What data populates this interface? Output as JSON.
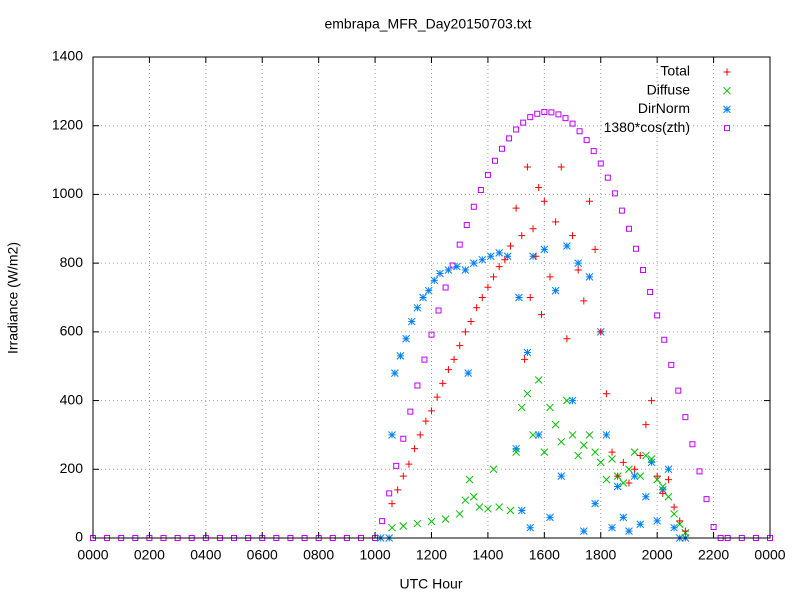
{
  "chart_data": {
    "type": "scatter",
    "title": "embrapa_MFR_Day20150703.txt",
    "xlabel": "UTC Hour",
    "ylabel": "Irradiance (W/m2)",
    "xlim": [
      0,
      24
    ],
    "ylim": [
      0,
      1400
    ],
    "xticks": [
      {
        "value": 0,
        "label": "0000"
      },
      {
        "value": 2,
        "label": "0200"
      },
      {
        "value": 4,
        "label": "0400"
      },
      {
        "value": 6,
        "label": "0600"
      },
      {
        "value": 8,
        "label": "0800"
      },
      {
        "value": 10,
        "label": "1000"
      },
      {
        "value": 12,
        "label": "1200"
      },
      {
        "value": 14,
        "label": "1400"
      },
      {
        "value": 16,
        "label": "1600"
      },
      {
        "value": 18,
        "label": "1800"
      },
      {
        "value": 20,
        "label": "2000"
      },
      {
        "value": 22,
        "label": "2200"
      },
      {
        "value": 24,
        "label": "0000"
      }
    ],
    "yticks": [
      0,
      200,
      400,
      600,
      800,
      1000,
      1200,
      1400
    ],
    "grid": true,
    "legend": "top-right",
    "series": [
      {
        "name": "1380*cos(zth)",
        "color": "#c000ff",
        "marker": "square",
        "x": [
          0,
          0.5,
          1,
          1.5,
          2,
          2.5,
          3,
          3.5,
          4,
          4.5,
          5,
          5.5,
          6,
          6.5,
          7,
          7.5,
          8,
          8.5,
          9,
          9.5,
          10,
          10.25,
          10.5,
          10.75,
          11,
          11.25,
          11.5,
          11.75,
          12,
          12.25,
          12.5,
          12.75,
          13,
          13.25,
          13.5,
          13.75,
          14,
          14.25,
          14.5,
          14.75,
          15,
          15.25,
          15.5,
          15.75,
          16,
          16.25,
          16.5,
          16.75,
          17,
          17.25,
          17.5,
          17.75,
          18,
          18.25,
          18.5,
          18.75,
          19,
          19.25,
          19.5,
          19.75,
          20,
          20.25,
          20.5,
          20.75,
          21,
          21.25,
          21.5,
          21.75,
          22,
          22.25,
          22.5,
          23,
          23.5,
          24
        ],
        "values": [
          0,
          0,
          0,
          0,
          0,
          0,
          0,
          0,
          0,
          0,
          0,
          0,
          0,
          0,
          0,
          0,
          0,
          0,
          0,
          0,
          0,
          49,
          130,
          210,
          289,
          368,
          444,
          519,
          592,
          662,
          729,
          793,
          854,
          911,
          964,
          1013,
          1057,
          1098,
          1133,
          1163,
          1189,
          1209,
          1225,
          1235,
          1240,
          1239,
          1233,
          1222,
          1206,
          1184,
          1158,
          1126,
          1090,
          1049,
          1003,
          953,
          900,
          842,
          780,
          716,
          648,
          577,
          504,
          429,
          352,
          273,
          194,
          113,
          32,
          0,
          0,
          0,
          0,
          0
        ]
      },
      {
        "name": "DirNorm",
        "color": "#0080ff",
        "marker": "star",
        "x": [
          10.2,
          10.5,
          10.6,
          10.7,
          10.9,
          11.1,
          11.3,
          11.5,
          11.7,
          11.9,
          12.1,
          12.3,
          12.6,
          12.9,
          13.2,
          13.3,
          13.5,
          13.8,
          14.1,
          14.4,
          14.7,
          15.0,
          15.1,
          15.2,
          15.4,
          15.5,
          15.6,
          15.8,
          16.0,
          16.2,
          16.4,
          16.6,
          16.8,
          17.0,
          17.2,
          17.4,
          17.6,
          17.8,
          18.0,
          18.2,
          18.4,
          18.6,
          18.8,
          19.0,
          19.2,
          19.4,
          19.6,
          19.8,
          20.0,
          20.2,
          20.4,
          20.6,
          20.8,
          21.0
        ],
        "values": [
          0,
          0,
          300,
          480,
          530,
          580,
          630,
          670,
          700,
          720,
          750,
          770,
          780,
          790,
          780,
          480,
          800,
          810,
          820,
          830,
          820,
          260,
          700,
          80,
          540,
          30,
          820,
          300,
          840,
          60,
          720,
          180,
          850,
          400,
          800,
          20,
          760,
          100,
          600,
          300,
          30,
          150,
          60,
          20,
          180,
          40,
          120,
          220,
          50,
          140,
          200,
          30,
          0,
          0
        ]
      },
      {
        "name": "Diffuse",
        "color": "#00c000",
        "marker": "cross",
        "x": [
          10.6,
          11.0,
          11.5,
          12.0,
          12.5,
          13.0,
          13.2,
          13.35,
          13.5,
          13.7,
          14.0,
          14.2,
          14.4,
          14.8,
          15.0,
          15.2,
          15.4,
          15.6,
          15.8,
          16.0,
          16.2,
          16.4,
          16.6,
          16.8,
          17.0,
          17.2,
          17.4,
          17.6,
          17.8,
          18.0,
          18.2,
          18.4,
          18.6,
          18.8,
          19.0,
          19.2,
          19.4,
          19.6,
          19.8,
          20.0,
          20.2,
          20.4,
          20.6,
          20.8,
          21.0
        ],
        "values": [
          30,
          35,
          42,
          48,
          55,
          70,
          110,
          170,
          120,
          90,
          85,
          200,
          90,
          80,
          250,
          380,
          420,
          300,
          460,
          250,
          380,
          330,
          280,
          400,
          300,
          240,
          270,
          300,
          250,
          220,
          170,
          230,
          180,
          160,
          200,
          250,
          180,
          240,
          230,
          170,
          150,
          120,
          70,
          40,
          15
        ]
      },
      {
        "name": "Total",
        "color": "#ff0000",
        "marker": "plus",
        "x": [
          10.6,
          10.8,
          11.0,
          11.2,
          11.4,
          11.6,
          11.8,
          12.0,
          12.2,
          12.4,
          12.6,
          12.8,
          13.0,
          13.2,
          13.4,
          13.6,
          13.8,
          14.0,
          14.2,
          14.4,
          14.6,
          14.8,
          15.0,
          15.2,
          15.3,
          15.4,
          15.5,
          15.6,
          15.7,
          15.8,
          15.9,
          16.0,
          16.2,
          16.4,
          16.6,
          16.8,
          17.0,
          17.2,
          17.4,
          17.6,
          17.8,
          18.0,
          18.2,
          18.4,
          18.6,
          18.8,
          19.0,
          19.2,
          19.4,
          19.6,
          19.8,
          20.0,
          20.2,
          20.4,
          20.6,
          20.8,
          21.0
        ],
        "values": [
          100,
          140,
          180,
          215,
          260,
          300,
          340,
          370,
          410,
          450,
          490,
          520,
          560,
          600,
          630,
          670,
          700,
          730,
          760,
          790,
          810,
          850,
          960,
          880,
          520,
          1080,
          700,
          900,
          820,
          1020,
          650,
          980,
          760,
          920,
          1080,
          580,
          880,
          780,
          690,
          980,
          840,
          600,
          420,
          250,
          180,
          220,
          160,
          200,
          240,
          330,
          400,
          180,
          130,
          170,
          90,
          50,
          20
        ]
      }
    ],
    "legend_order": [
      3,
      2,
      1,
      0
    ]
  }
}
